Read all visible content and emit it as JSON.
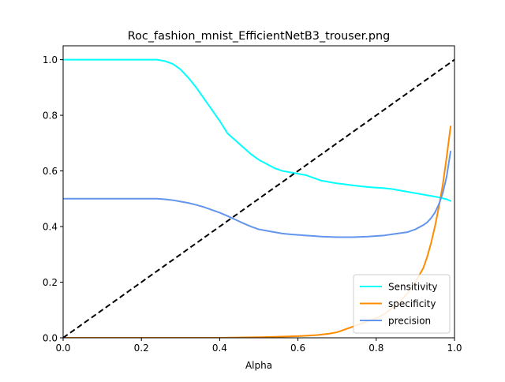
{
  "chart_data": {
    "type": "line",
    "title": "Roc_fashion_mnist_EfficientNetB3_trouser.png",
    "xlabel": "Alpha",
    "ylabel": "",
    "xlim": [
      0,
      1
    ],
    "ylim": [
      0,
      1.05
    ],
    "xticks": [
      0.0,
      0.2,
      0.4,
      0.6,
      0.8,
      1.0
    ],
    "xtick_labels": [
      "0.0",
      "0.2",
      "0.4",
      "0.6",
      "0.8",
      "1.0"
    ],
    "yticks": [
      0.0,
      0.2,
      0.4,
      0.6,
      0.8,
      1.0
    ],
    "ytick_labels": [
      "0.0",
      "0.2",
      "0.4",
      "0.6",
      "0.8",
      "1.0"
    ],
    "grid": false,
    "legend_position": "lower-right",
    "series": [
      {
        "name": "Sensitivity",
        "color": "#00ffff",
        "x": [
          0.0,
          0.05,
          0.1,
          0.15,
          0.2,
          0.24,
          0.26,
          0.28,
          0.3,
          0.32,
          0.34,
          0.36,
          0.38,
          0.4,
          0.42,
          0.44,
          0.46,
          0.48,
          0.5,
          0.52,
          0.54,
          0.56,
          0.58,
          0.6,
          0.62,
          0.64,
          0.66,
          0.68,
          0.7,
          0.72,
          0.74,
          0.76,
          0.78,
          0.8,
          0.82,
          0.84,
          0.86,
          0.88,
          0.9,
          0.92,
          0.94,
          0.96,
          0.98,
          0.99
        ],
        "y": [
          1.0,
          1.0,
          1.0,
          1.0,
          1.0,
          1.0,
          0.995,
          0.985,
          0.965,
          0.935,
          0.9,
          0.86,
          0.82,
          0.78,
          0.735,
          0.71,
          0.685,
          0.66,
          0.64,
          0.625,
          0.61,
          0.6,
          0.595,
          0.59,
          0.585,
          0.575,
          0.565,
          0.56,
          0.555,
          0.552,
          0.548,
          0.545,
          0.542,
          0.54,
          0.538,
          0.535,
          0.53,
          0.525,
          0.52,
          0.515,
          0.51,
          0.505,
          0.498,
          0.492
        ]
      },
      {
        "name": "specificity",
        "color": "#ff8c00",
        "x": [
          0.0,
          0.1,
          0.2,
          0.3,
          0.4,
          0.5,
          0.55,
          0.6,
          0.65,
          0.68,
          0.7,
          0.72,
          0.75,
          0.78,
          0.8,
          0.82,
          0.84,
          0.86,
          0.88,
          0.9,
          0.92,
          0.93,
          0.94,
          0.95,
          0.96,
          0.97,
          0.98,
          0.99
        ],
        "y": [
          0.0,
          0.0,
          0.0,
          0.0,
          0.0,
          0.002,
          0.004,
          0.006,
          0.01,
          0.015,
          0.02,
          0.03,
          0.045,
          0.06,
          0.07,
          0.085,
          0.105,
          0.13,
          0.16,
          0.2,
          0.25,
          0.29,
          0.34,
          0.4,
          0.47,
          0.55,
          0.65,
          0.76
        ]
      },
      {
        "name": "precision",
        "color": "#6495ed",
        "x": [
          0.0,
          0.1,
          0.2,
          0.24,
          0.26,
          0.28,
          0.3,
          0.32,
          0.34,
          0.36,
          0.38,
          0.4,
          0.42,
          0.44,
          0.46,
          0.48,
          0.5,
          0.52,
          0.54,
          0.56,
          0.58,
          0.6,
          0.62,
          0.64,
          0.66,
          0.68,
          0.7,
          0.72,
          0.74,
          0.76,
          0.78,
          0.8,
          0.82,
          0.84,
          0.86,
          0.88,
          0.9,
          0.92,
          0.93,
          0.94,
          0.95,
          0.96,
          0.97,
          0.98,
          0.99
        ],
        "y": [
          0.5,
          0.5,
          0.5,
          0.5,
          0.498,
          0.495,
          0.49,
          0.485,
          0.478,
          0.47,
          0.46,
          0.45,
          0.438,
          0.425,
          0.412,
          0.4,
          0.39,
          0.385,
          0.38,
          0.375,
          0.372,
          0.37,
          0.368,
          0.366,
          0.364,
          0.363,
          0.362,
          0.362,
          0.362,
          0.363,
          0.364,
          0.366,
          0.368,
          0.372,
          0.376,
          0.38,
          0.39,
          0.405,
          0.415,
          0.43,
          0.45,
          0.48,
          0.52,
          0.58,
          0.67
        ]
      }
    ],
    "reference_line": {
      "color": "#000000",
      "style": "dashed",
      "x": [
        0.0,
        1.0
      ],
      "y": [
        0.0,
        1.0
      ]
    }
  }
}
